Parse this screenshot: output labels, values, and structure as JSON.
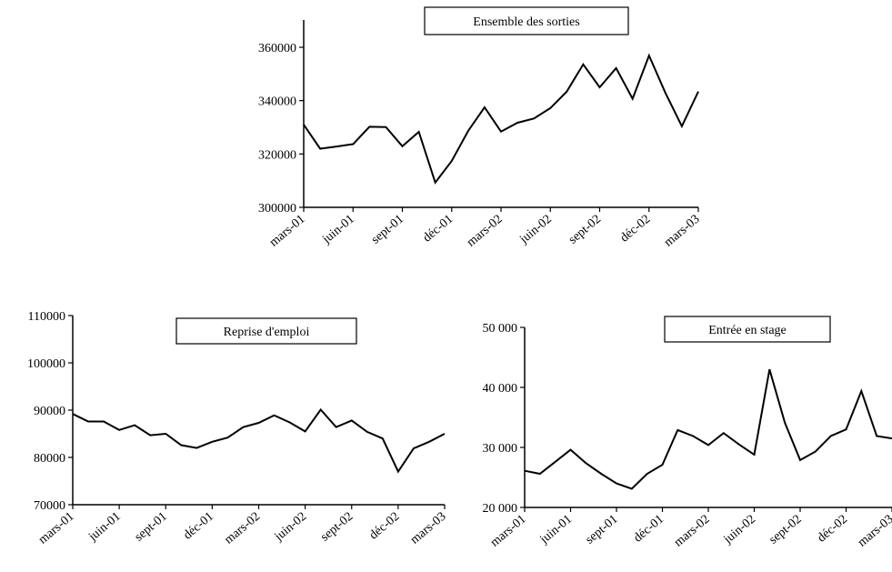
{
  "x_labels": [
    "mars-01",
    "juin-01",
    "sept-01",
    "déc-01",
    "mars-02",
    "juin-02",
    "sept-02",
    "déc-02",
    "mars-03"
  ],
  "chart_data": [
    {
      "type": "line",
      "title": "Ensemble des sorties",
      "ylim": [
        300000,
        360000
      ],
      "y_ticks": [
        300000,
        320000,
        340000,
        360000
      ],
      "y_tick_labels": [
        "300000",
        "320000",
        "340000",
        "360000"
      ],
      "values": [
        331000,
        322000,
        322800,
        323700,
        330200,
        330100,
        322900,
        328300,
        309300,
        317400,
        328600,
        337500,
        328400,
        331700,
        333300,
        337200,
        343400,
        353600,
        345000,
        352200,
        340700,
        356900,
        342900,
        330400,
        343400
      ]
    },
    {
      "type": "line",
      "title": "Reprise d'emploi",
      "ylim": [
        70000,
        110000
      ],
      "y_ticks": [
        70000,
        80000,
        90000,
        100000,
        110000
      ],
      "y_tick_labels": [
        "70000",
        "80000",
        "90000",
        "100000",
        "110000"
      ],
      "values": [
        89200,
        87600,
        87600,
        85800,
        86800,
        84700,
        85000,
        82600,
        82000,
        83300,
        84200,
        86400,
        87300,
        88900,
        87400,
        85500,
        90100,
        86400,
        87800,
        85400,
        84000,
        77000,
        81900,
        83300,
        85000
      ]
    },
    {
      "type": "line",
      "title": "Entrée en stage",
      "ylim": [
        20000,
        50000
      ],
      "y_ticks": [
        20000,
        30000,
        40000,
        50000
      ],
      "y_tick_labels": [
        "20 000",
        "30 000",
        "40 000",
        "50 000"
      ],
      "values": [
        26100,
        25600,
        27600,
        29600,
        27400,
        25600,
        24000,
        23100,
        25600,
        27100,
        32900,
        31900,
        30400,
        32400,
        30500,
        28800,
        43000,
        34100,
        27900,
        29300,
        31900,
        33000,
        39400,
        31900,
        31500
      ]
    }
  ]
}
